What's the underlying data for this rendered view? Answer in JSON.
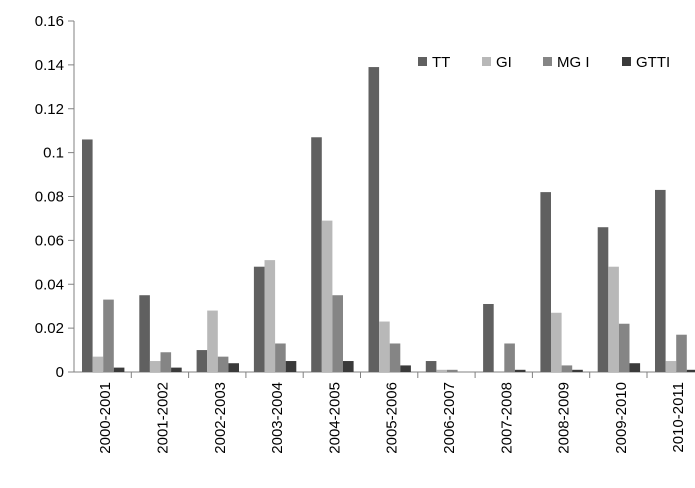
{
  "chart_data": {
    "type": "bar",
    "title": "",
    "xlabel": "",
    "ylabel": "",
    "ylim": [
      0,
      0.16
    ],
    "y_ticks": [
      "0",
      "0.02",
      "0.04",
      "0.06",
      "0.08",
      "0.1",
      "0.12",
      "0.14",
      "0.16"
    ],
    "grid": false,
    "legend_position": "top-right",
    "categories": [
      "2000-2001",
      "2001-2002",
      "2002-2003",
      "2003-2004",
      "2004-2005",
      "2005-2006",
      "2006-2007",
      "2007-2008",
      "2008-2009",
      "2009-2010",
      "2010-2011"
    ],
    "series": [
      {
        "name": "TT",
        "color": "#606060",
        "values": [
          0.106,
          0.035,
          0.01,
          0.048,
          0.107,
          0.139,
          0.005,
          0.031,
          0.082,
          0.066,
          0.083
        ]
      },
      {
        "name": "GI",
        "color": "#b8b8b8",
        "values": [
          0.007,
          0.005,
          0.028,
          0.051,
          0.069,
          0.023,
          0.001,
          0.0,
          0.027,
          0.048,
          0.005
        ]
      },
      {
        "name": "MG I",
        "color": "#858585",
        "values": [
          0.033,
          0.009,
          0.007,
          0.013,
          0.035,
          0.013,
          0.001,
          0.013,
          0.003,
          0.022,
          0.017
        ]
      },
      {
        "name": "GTTI",
        "color": "#3a3a3a",
        "values": [
          0.002,
          0.002,
          0.004,
          0.005,
          0.005,
          0.003,
          0.0,
          0.001,
          0.001,
          0.004,
          0.001
        ]
      }
    ]
  }
}
